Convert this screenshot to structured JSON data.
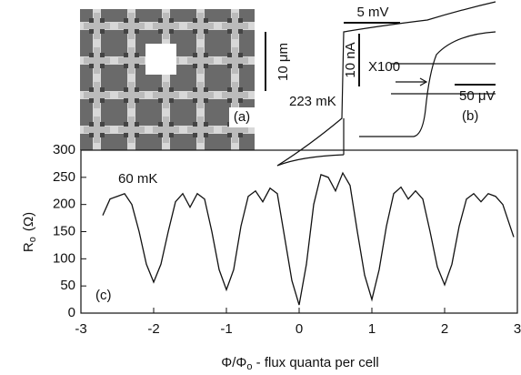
{
  "chart_data": {
    "type": "line",
    "annotation": "60 mK",
    "panel_label": "(c)",
    "ylabel": "R",
    "ylabel_sub": "o",
    "ylabel_unit": "(Ω)",
    "xlabel": "Φ/Φ",
    "xlabel_sub": "o",
    "xlabel_rest": " - flux quanta per cell",
    "color": "#111111",
    "xlim": [
      -3,
      3
    ],
    "ylim": [
      0,
      300
    ],
    "xticks": [
      -3,
      -2,
      -1,
      0,
      1,
      2,
      3
    ],
    "yticks": [
      0,
      50,
      100,
      150,
      200,
      250,
      300
    ],
    "x": [
      -2.7,
      -2.6,
      -2.5,
      -2.4,
      -2.3,
      -2.2,
      -2.1,
      -2.0,
      -1.9,
      -1.8,
      -1.7,
      -1.6,
      -1.5,
      -1.4,
      -1.3,
      -1.2,
      -1.1,
      -1.0,
      -0.9,
      -0.8,
      -0.7,
      -0.6,
      -0.5,
      -0.4,
      -0.3,
      -0.2,
      -0.1,
      0,
      0.1,
      0.2,
      0.3,
      0.4,
      0.5,
      0.6,
      0.7,
      0.8,
      0.9,
      1.0,
      1.1,
      1.2,
      1.3,
      1.4,
      1.5,
      1.6,
      1.7,
      1.8,
      1.9,
      2.0,
      2.1,
      2.2,
      2.3,
      2.4,
      2.5,
      2.6,
      2.7,
      2.8,
      2.9,
      2.95
    ],
    "values": [
      180,
      210,
      215,
      220,
      200,
      150,
      90,
      57,
      90,
      150,
      205,
      220,
      195,
      220,
      210,
      150,
      80,
      43,
      80,
      160,
      215,
      225,
      205,
      230,
      220,
      140,
      60,
      15,
      90,
      200,
      255,
      250,
      225,
      258,
      235,
      150,
      70,
      25,
      80,
      160,
      220,
      232,
      210,
      225,
      210,
      150,
      85,
      52,
      90,
      160,
      210,
      220,
      205,
      220,
      215,
      200,
      160,
      140
    ]
  },
  "insets": {
    "a": {
      "scale": "10 μm",
      "label": "(a)"
    },
    "b": {
      "voltage_scale": "5 mV",
      "current_scale": "10 nA",
      "magnification": "X100",
      "fine_scale": "50 μV",
      "temperature": "223 mK",
      "label": "(b)"
    }
  }
}
